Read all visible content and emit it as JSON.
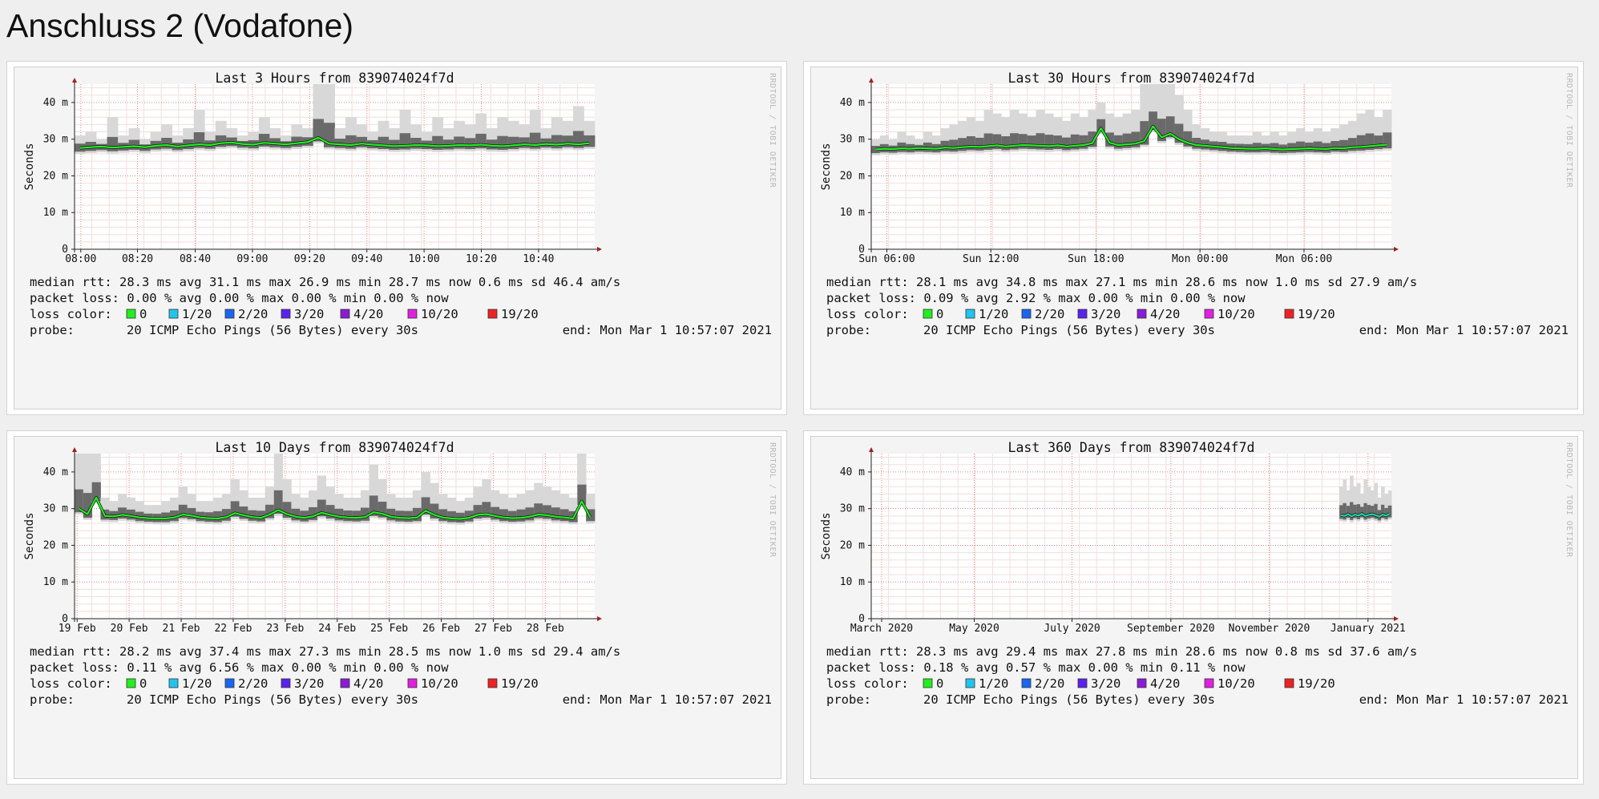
{
  "page": {
    "title": "Anschluss 2 (Vodafone)"
  },
  "legend_colors": [
    "#22ee22",
    "#22c4ee",
    "#1a66ee",
    "#5a22ee",
    "#8a1cd6",
    "#e020e0",
    "#ee2222"
  ],
  "chart_data": [
    {
      "type": "line",
      "title": "Last 3 Hours from 839074024f7d",
      "ylabel": "Seconds",
      "watermark": "RRDTOOL / TOBI OETIKER",
      "ylim": [
        0,
        45
      ],
      "yticks": [
        {
          "v": 0,
          "label": "0"
        },
        {
          "v": 10,
          "label": "10 m"
        },
        {
          "v": 20,
          "label": "20 m"
        },
        {
          "v": 30,
          "label": "30 m"
        },
        {
          "v": 40,
          "label": "40 m"
        }
      ],
      "xticks": [
        {
          "f": 0.012,
          "label": "08:00"
        },
        {
          "f": 0.121,
          "label": "08:20"
        },
        {
          "f": 0.232,
          "label": "08:40"
        },
        {
          "f": 0.342,
          "label": "09:00"
        },
        {
          "f": 0.452,
          "label": "09:20"
        },
        {
          "f": 0.562,
          "label": "09:40"
        },
        {
          "f": 0.672,
          "label": "10:00"
        },
        {
          "f": 0.782,
          "label": "10:20"
        },
        {
          "f": 0.892,
          "label": "10:40"
        }
      ],
      "series": [
        {
          "name": "median rtt",
          "x_start": 0,
          "x_end": 1,
          "values": [
            27.6,
            27.8,
            28.0,
            27.7,
            27.9,
            28.1,
            27.8,
            28.2,
            28.4,
            28.0,
            28.3,
            28.6,
            28.4,
            28.9,
            29.1,
            28.7,
            28.5,
            29.0,
            28.8,
            28.6,
            28.9,
            29.2,
            30.4,
            28.8,
            28.6,
            28.4,
            28.8,
            28.5,
            28.3,
            28.1,
            28.2,
            28.4,
            28.3,
            28.1,
            28.2,
            28.4,
            28.3,
            28.5,
            28.2,
            28.1,
            28.3,
            28.6,
            28.4,
            28.7,
            28.5,
            28.8,
            28.6,
            28.9
          ]
        },
        {
          "name": "max",
          "values": [
            31,
            32,
            30,
            36,
            31,
            33,
            30,
            32,
            34,
            31,
            33,
            38,
            32,
            35,
            33,
            31,
            32,
            36,
            33,
            31,
            34,
            33,
            45,
            45,
            33,
            36,
            34,
            32,
            35,
            33,
            38,
            34,
            32,
            36,
            33,
            35,
            34,
            37,
            33,
            36,
            35,
            34,
            38,
            33,
            36,
            35,
            39,
            35
          ]
        }
      ],
      "stats": {
        "median_rtt": "median rtt:   28.3 ms avg   31.1 ms max   26.9 ms min   28.7 ms now   0.6 ms sd   46.4    am/s",
        "packet_loss": "packet loss:  0.00 % avg   0.00 % max   0.00 % min   0.00 % now",
        "loss_color_label": "loss color:",
        "loss_legend": [
          "0",
          "1/20",
          "2/20",
          "3/20",
          "4/20",
          "10/20",
          "19/20"
        ],
        "probe_label": "probe:",
        "probe": "20 ICMP Echo Pings (56 Bytes) every 30s",
        "end": "end: Mon Mar  1 10:57:07 2021"
      }
    },
    {
      "type": "line",
      "title": "Last 30 Hours from 839074024f7d",
      "ylabel": "Seconds",
      "watermark": "RRDTOOL / TOBI OETIKER",
      "ylim": [
        0,
        45
      ],
      "yticks": [
        {
          "v": 0,
          "label": "0"
        },
        {
          "v": 10,
          "label": "10 m"
        },
        {
          "v": 20,
          "label": "20 m"
        },
        {
          "v": 30,
          "label": "30 m"
        },
        {
          "v": 40,
          "label": "40 m"
        }
      ],
      "xticks": [
        {
          "f": 0.03,
          "label": "Sun 06:00"
        },
        {
          "f": 0.23,
          "label": "Sun 12:00"
        },
        {
          "f": 0.432,
          "label": "Sun 18:00"
        },
        {
          "f": 0.632,
          "label": "Mon 00:00"
        },
        {
          "f": 0.832,
          "label": "Mon 06:00"
        }
      ],
      "series": [
        {
          "name": "median rtt",
          "x_start": 0,
          "x_end": 1,
          "values": [
            27.2,
            27.4,
            27.3,
            27.5,
            27.4,
            27.6,
            27.5,
            27.4,
            27.7,
            27.6,
            27.8,
            28.0,
            27.9,
            28.1,
            28.3,
            28.0,
            28.2,
            28.4,
            28.3,
            28.2,
            28.1,
            28.3,
            28.0,
            28.2,
            28.4,
            28.9,
            33.0,
            29.0,
            28.4,
            28.6,
            28.8,
            29.5,
            33.5,
            30.5,
            31.5,
            30.0,
            29.0,
            28.4,
            28.2,
            28.0,
            27.8,
            27.6,
            27.5,
            27.4,
            27.4,
            27.5,
            27.3,
            27.2,
            27.3,
            27.4,
            27.5,
            27.4,
            27.3,
            27.6,
            27.5,
            27.8,
            27.9,
            28.1,
            28.3,
            28.5
          ]
        },
        {
          "name": "max",
          "values": [
            30,
            31,
            30,
            32,
            31,
            30,
            32,
            31,
            33,
            34,
            35,
            36,
            35,
            38,
            37,
            36,
            38,
            37,
            36,
            38,
            37,
            36,
            35,
            37,
            36,
            38,
            40,
            37,
            36,
            37,
            38,
            45,
            45,
            45,
            45,
            42,
            38,
            34,
            33,
            32,
            32,
            31,
            31,
            31,
            32,
            31,
            32,
            31,
            32,
            33,
            32,
            33,
            32,
            33,
            34,
            35,
            37,
            38,
            36,
            38
          ]
        }
      ],
      "stats": {
        "median_rtt": "median rtt:   28.1 ms avg   34.8 ms max   27.1 ms min   28.6 ms now   1.0 ms sd   27.9    am/s",
        "packet_loss": "packet loss:  0.09 % avg   2.92 % max   0.00 % min   0.00 % now",
        "loss_color_label": "loss color:",
        "loss_legend": [
          "0",
          "1/20",
          "2/20",
          "3/20",
          "4/20",
          "10/20",
          "19/20"
        ],
        "probe_label": "probe:",
        "probe": "20 ICMP Echo Pings (56 Bytes) every 30s",
        "end": "end: Mon Mar  1 10:57:07 2021"
      }
    },
    {
      "type": "line",
      "title": "Last 10 Days from 839074024f7d",
      "ylabel": "Seconds",
      "watermark": "RRDTOOL / TOBI OETIKER",
      "ylim": [
        0,
        45
      ],
      "yticks": [
        {
          "v": 0,
          "label": "0"
        },
        {
          "v": 10,
          "label": "10 m"
        },
        {
          "v": 20,
          "label": "20 m"
        },
        {
          "v": 30,
          "label": "30 m"
        },
        {
          "v": 40,
          "label": "40 m"
        }
      ],
      "xticks": [
        {
          "f": 0.005,
          "label": "19 Feb"
        },
        {
          "f": 0.105,
          "label": "20 Feb"
        },
        {
          "f": 0.205,
          "label": "21 Feb"
        },
        {
          "f": 0.305,
          "label": "22 Feb"
        },
        {
          "f": 0.405,
          "label": "23 Feb"
        },
        {
          "f": 0.505,
          "label": "24 Feb"
        },
        {
          "f": 0.605,
          "label": "25 Feb"
        },
        {
          "f": 0.705,
          "label": "26 Feb"
        },
        {
          "f": 0.805,
          "label": "27 Feb"
        },
        {
          "f": 0.905,
          "label": "28 Feb"
        }
      ],
      "series": [
        {
          "name": "median rtt",
          "x_start": 0,
          "x_end": 1,
          "values": [
            30.0,
            28.5,
            33.0,
            28.0,
            27.9,
            28.3,
            28.0,
            27.6,
            27.4,
            27.3,
            27.3,
            27.6,
            28.4,
            28.1,
            27.6,
            27.4,
            27.3,
            27.7,
            28.8,
            28.2,
            27.7,
            27.5,
            28.4,
            29.6,
            28.5,
            27.8,
            27.5,
            27.9,
            28.9,
            28.3,
            27.8,
            27.6,
            27.5,
            27.7,
            29.0,
            28.6,
            27.8,
            27.5,
            27.4,
            27.6,
            29.4,
            28.3,
            27.6,
            27.3,
            27.2,
            27.5,
            28.3,
            28.5,
            28.0,
            27.6,
            27.4,
            27.5,
            27.8,
            28.4,
            28.2,
            27.8,
            27.6,
            27.3,
            32.0,
            27.6
          ]
        },
        {
          "name": "max",
          "values": [
            45,
            45,
            45,
            33,
            32,
            34,
            33,
            32,
            31,
            31,
            32,
            33,
            36,
            34,
            32,
            32,
            33,
            34,
            38,
            35,
            33,
            33,
            36,
            45,
            38,
            34,
            33,
            35,
            39,
            36,
            34,
            33,
            33,
            35,
            42,
            38,
            34,
            33,
            33,
            35,
            40,
            37,
            34,
            33,
            32,
            33,
            36,
            38,
            35,
            34,
            33,
            34,
            35,
            37,
            36,
            35,
            34,
            33,
            45,
            34
          ]
        }
      ],
      "stats": {
        "median_rtt": "median rtt:   28.2 ms avg   37.4 ms max   27.3 ms min   28.5 ms now   1.0 ms sd   29.4    am/s",
        "packet_loss": "packet loss:  0.11 % avg   6.56 % max   0.00 % min   0.00 % now",
        "loss_color_label": "loss color:",
        "loss_legend": [
          "0",
          "1/20",
          "2/20",
          "3/20",
          "4/20",
          "10/20",
          "19/20"
        ],
        "probe_label": "probe:",
        "probe": "20 ICMP Echo Pings (56 Bytes) every 30s",
        "end": "end: Mon Mar  1 10:57:07 2021"
      }
    },
    {
      "type": "line",
      "title": "Last 360 Days from 839074024f7d",
      "ylabel": "Seconds",
      "watermark": "RRDTOOL / TOBI OETIKER",
      "ylim": [
        0,
        45
      ],
      "yticks": [
        {
          "v": 0,
          "label": "0"
        },
        {
          "v": 10,
          "label": "10 m"
        },
        {
          "v": 20,
          "label": "20 m"
        },
        {
          "v": 30,
          "label": "30 m"
        },
        {
          "v": 40,
          "label": "40 m"
        }
      ],
      "xticks": [
        {
          "f": 0.02,
          "label": "March 2020"
        },
        {
          "f": 0.198,
          "label": "May 2020"
        },
        {
          "f": 0.386,
          "label": "July 2020"
        },
        {
          "f": 0.576,
          "label": "September 2020"
        },
        {
          "f": 0.765,
          "label": "November 2020"
        },
        {
          "f": 0.955,
          "label": "January 2021"
        }
      ],
      "series": [
        {
          "name": "median rtt",
          "x_start": 0.9,
          "x_end": 1,
          "values": [
            28.2,
            28.0,
            28.5,
            27.9,
            28.4,
            28.1,
            28.6,
            28.0,
            28.3,
            28.5,
            28.2,
            27.8,
            28.4,
            28.1,
            28.6
          ]
        },
        {
          "name": "max",
          "values": [
            36,
            38,
            35,
            39,
            36,
            37,
            34,
            38,
            36,
            35,
            37,
            33,
            36,
            34,
            35
          ]
        }
      ],
      "stats": {
        "median_rtt": "median rtt:   28.3 ms avg   29.4 ms max   27.8 ms min   28.6 ms now   0.8 ms sd   37.6    am/s",
        "packet_loss": "packet loss:  0.18 % avg   0.57 % max   0.00 % min   0.11 % now",
        "loss_color_label": "loss color:",
        "loss_legend": [
          "0",
          "1/20",
          "2/20",
          "3/20",
          "4/20",
          "10/20",
          "19/20"
        ],
        "probe_label": "probe:",
        "probe": "20 ICMP Echo Pings (56 Bytes) every 30s",
        "end": "end: Mon Mar  1 10:57:07 2021"
      }
    }
  ]
}
